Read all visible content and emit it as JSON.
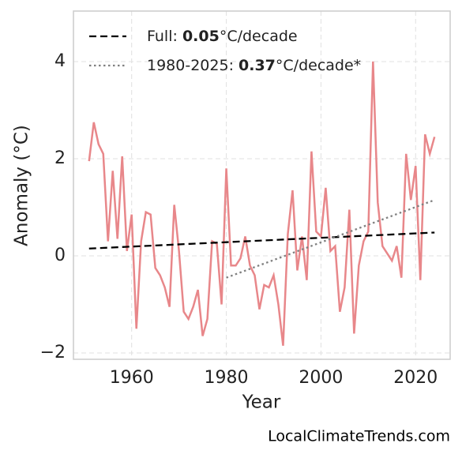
{
  "chart_data": {
    "type": "line",
    "xlabel": "Year",
    "ylabel": "Anomaly (°C)",
    "watermark": "LocalClimateTrends.com",
    "xlim": [
      1947.7,
      2027.3
    ],
    "ylim": [
      -2.13,
      5.04
    ],
    "xticks": [
      1960,
      1980,
      2000,
      2020
    ],
    "yticks": [
      {
        "value": -2,
        "label": "−2"
      },
      0,
      2,
      4
    ],
    "grid": true,
    "legend": "upper left",
    "series": [
      {
        "color": "#e8878a",
        "style": "solid",
        "x": [
          1951,
          1952,
          1953,
          1954,
          1955,
          1956,
          1957,
          1958,
          1959,
          1960,
          1961,
          1962,
          1963,
          1964,
          1965,
          1966,
          1967,
          1968,
          1969,
          1970,
          1971,
          1972,
          1973,
          1974,
          1975,
          1976,
          1977,
          1978,
          1979,
          1980,
          1981,
          1982,
          1983,
          1984,
          1985,
          1986,
          1987,
          1988,
          1989,
          1990,
          1991,
          1992,
          1993,
          1994,
          1995,
          1996,
          1997,
          1998,
          1999,
          2000,
          2001,
          2002,
          2003,
          2004,
          2005,
          2006,
          2007,
          2008,
          2009,
          2010,
          2011,
          2012,
          2013,
          2014,
          2015,
          2016,
          2017,
          2018,
          2019,
          2020,
          2021,
          2022,
          2023,
          2024
        ],
        "values": [
          1.95,
          2.75,
          2.3,
          2.1,
          0.3,
          1.75,
          0.35,
          2.05,
          0.1,
          0.85,
          -1.5,
          0.3,
          0.9,
          0.85,
          -0.25,
          -0.4,
          -0.65,
          -1.05,
          1.05,
          0.1,
          -1.15,
          -1.3,
          -1.05,
          -0.7,
          -1.65,
          -1.3,
          0.3,
          0.25,
          -1.0,
          1.8,
          -0.2,
          -0.2,
          -0.05,
          0.4,
          -0.2,
          -0.4,
          -1.1,
          -0.6,
          -0.65,
          -0.4,
          -1.0,
          -1.85,
          0.45,
          1.35,
          -0.3,
          0.4,
          -0.5,
          2.15,
          0.5,
          0.4,
          1.4,
          0.1,
          0.2,
          -1.15,
          -0.65,
          0.95,
          -1.6,
          -0.2,
          0.3,
          0.5,
          4.0,
          1.1,
          0.2,
          0.05,
          -0.1,
          0.2,
          -0.45,
          2.1,
          1.15,
          1.85,
          -0.5,
          2.5,
          2.1,
          2.45
        ]
      },
      {
        "label_parts": [
          "Full: ",
          "0.05",
          "°C/decade"
        ],
        "color": "#000000",
        "style": "dashed",
        "x": [
          1951,
          2024
        ],
        "values": [
          0.15,
          0.48
        ]
      },
      {
        "label_parts": [
          "1980-2025: ",
          "0.37",
          "°C/decade*"
        ],
        "color": "#808080",
        "style": "dotted",
        "x": [
          1980,
          2024
        ],
        "values": [
          -0.45,
          1.15
        ]
      }
    ]
  }
}
